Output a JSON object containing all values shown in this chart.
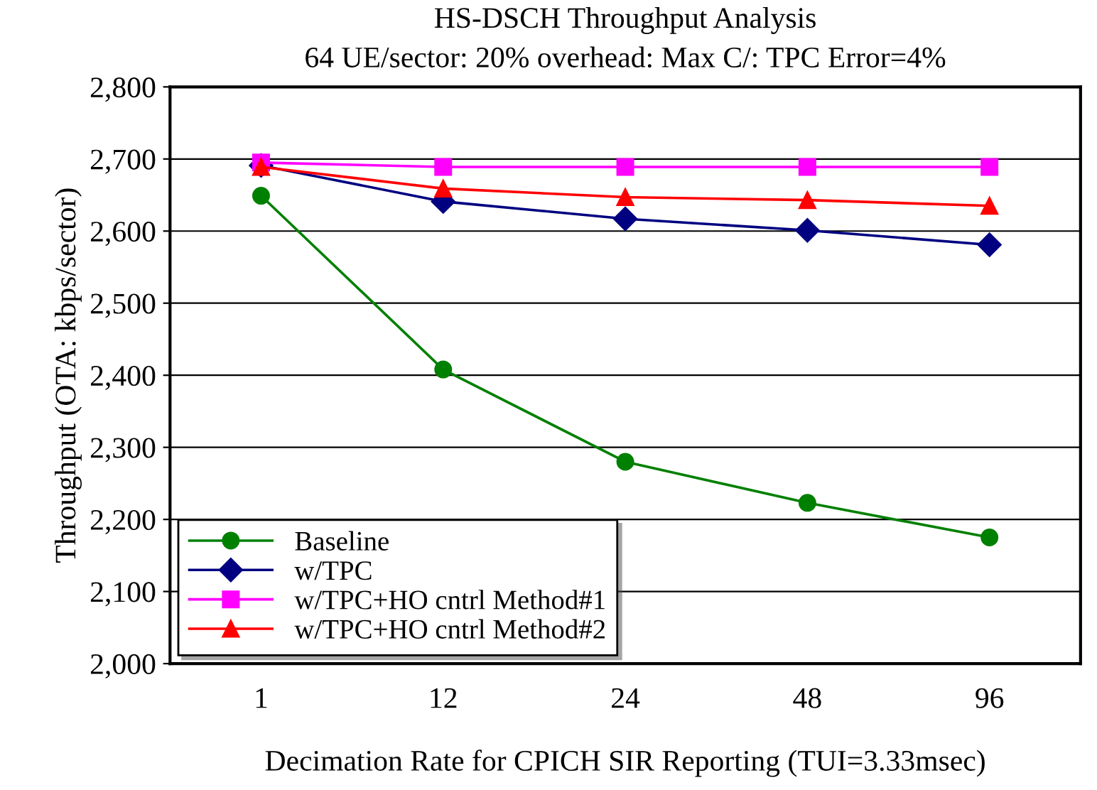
{
  "chart_data": {
    "type": "line",
    "title": "HS-DSCH Throughput Analysis",
    "subtitle": "64 UE/sector: 20% overhead: Max C/: TPC Error=4%",
    "xlabel": "Decimation Rate for CPICH SIR Reporting (TUI=3.33msec)",
    "ylabel": "Throughput (OTA: kbps/sector)",
    "categories": [
      "1",
      "12",
      "24",
      "48",
      "96"
    ],
    "series": [
      {
        "name": "Baseline",
        "color": "#008000",
        "marker": "circle",
        "values": [
          2649,
          2408,
          2280,
          2223,
          2175
        ]
      },
      {
        "name": "w/TPC",
        "color": "#000080",
        "marker": "diamond",
        "values": [
          2691,
          2641,
          2617,
          2601,
          2581
        ]
      },
      {
        "name": "w/TPC+HO cntrl Method#1",
        "color": "#ff00ff",
        "marker": "square",
        "values": [
          2695,
          2689,
          2689,
          2689,
          2689
        ]
      },
      {
        "name": "w/TPC+HO cntrl Method#2",
        "color": "#ff0000",
        "marker": "triangle",
        "values": [
          2689,
          2659,
          2647,
          2643,
          2635
        ]
      }
    ],
    "ylim": [
      2000,
      2800
    ],
    "yticks": [
      {
        "value": 2000,
        "label": "2,000"
      },
      {
        "value": 2100,
        "label": "2,100"
      },
      {
        "value": 2200,
        "label": "2,200"
      },
      {
        "value": 2300,
        "label": "2,300"
      },
      {
        "value": 2400,
        "label": "2,400"
      },
      {
        "value": 2500,
        "label": "2,500"
      },
      {
        "value": 2600,
        "label": "2,600"
      },
      {
        "value": 2700,
        "label": "2,700"
      },
      {
        "value": 2800,
        "label": "2,800"
      }
    ],
    "grid": "y",
    "legend": "bottom left",
    "line_style": "solid"
  }
}
